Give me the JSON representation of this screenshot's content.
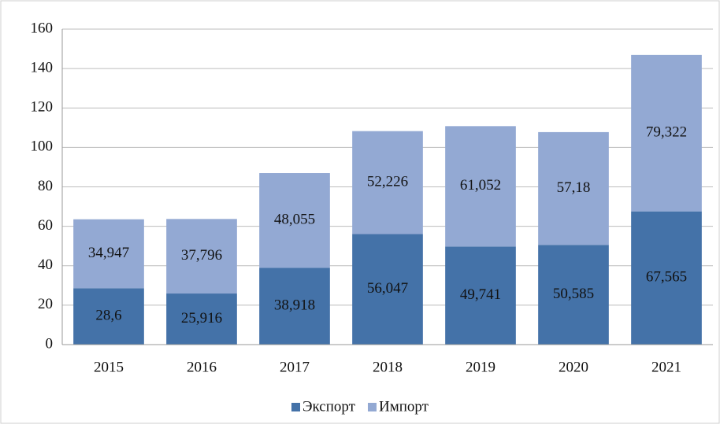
{
  "chart_data": {
    "type": "stacked_bar",
    "categories": [
      "2015",
      "2016",
      "2017",
      "2018",
      "2019",
      "2020",
      "2021"
    ],
    "series": [
      {
        "name": "Экспорт",
        "color": "#4472a8",
        "values": [
          28.6,
          25.916,
          38.918,
          56.047,
          49.741,
          50.585,
          67.565
        ],
        "value_labels": [
          "28,6",
          "25,916",
          "38,918",
          "56,047",
          "49,741",
          "50,585",
          "67,565"
        ]
      },
      {
        "name": "Импорт",
        "color": "#93a9d3",
        "values": [
          34.947,
          37.796,
          48.055,
          52.226,
          61.052,
          57.18,
          79.322
        ],
        "value_labels": [
          "34,947",
          "37,796",
          "48,055",
          "52,226",
          "61,052",
          "57,18",
          "79,322"
        ]
      }
    ],
    "ylim": [
      0,
      160
    ],
    "yticks": [
      0,
      20,
      40,
      60,
      80,
      100,
      120,
      140,
      160
    ],
    "grid": true,
    "legend": "bottom"
  }
}
